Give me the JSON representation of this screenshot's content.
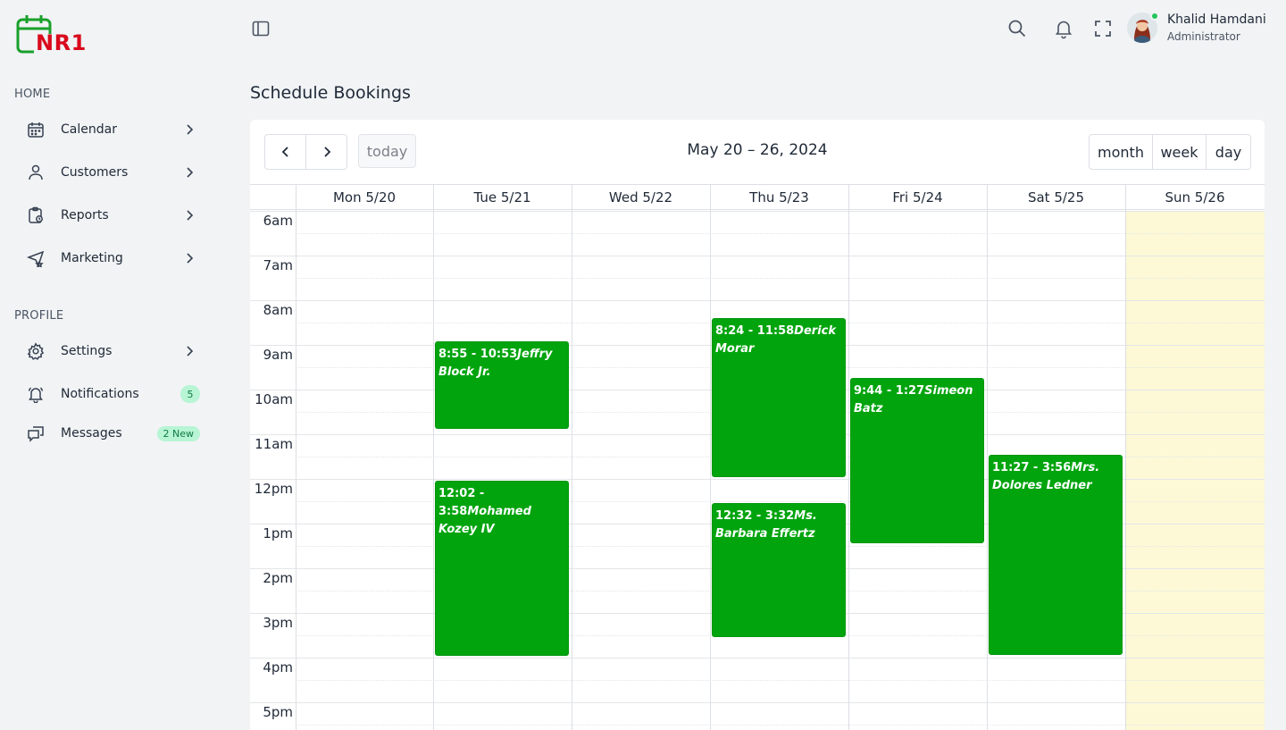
{
  "app": {
    "logo_text": "NR1",
    "user": {
      "name": "Khalid Hamdani",
      "role": "Administrator"
    }
  },
  "colors": {
    "event": "#02a40e",
    "logo": "#d90b1c",
    "today_bg": "#fdf9d6",
    "badge_bg": "#b7f5d4"
  },
  "sidebar": {
    "home_label": "HOME",
    "profile_label": "PROFILE",
    "home_items": [
      {
        "label": "Calendar",
        "icon": "calendar-icon"
      },
      {
        "label": "Customers",
        "icon": "user-icon"
      },
      {
        "label": "Reports",
        "icon": "clipboard-icon"
      },
      {
        "label": "Marketing",
        "icon": "send-icon"
      }
    ],
    "profile_items": [
      {
        "label": "Settings",
        "icon": "gear-icon"
      },
      {
        "label": "Notifications",
        "icon": "bell-icon",
        "badge": "5"
      },
      {
        "label": "Messages",
        "icon": "chat-icon",
        "badge": "2 New"
      }
    ]
  },
  "page": {
    "title": "Schedule Bookings"
  },
  "calendar": {
    "range_title": "May 20 – 26, 2024",
    "today_label": "today",
    "views": [
      "month",
      "week",
      "day"
    ],
    "days": [
      "Mon 5/20",
      "Tue 5/21",
      "Wed 5/22",
      "Thu 5/23",
      "Fri 5/24",
      "Sat 5/25",
      "Sun 5/26"
    ],
    "time_slots": [
      "6am",
      "7am",
      "8am",
      "9am",
      "10am",
      "11am",
      "12pm",
      "1pm",
      "2pm",
      "3pm",
      "4pm",
      "5pm"
    ],
    "events": [
      {
        "day": 1,
        "time": "8:55 - 10:53",
        "name": "Jeffry Block Jr."
      },
      {
        "day": 1,
        "time": "12:02 - 3:58",
        "name": "Mohamed Kozey IV"
      },
      {
        "day": 3,
        "time": "8:24 - 11:58",
        "name": "Derick Morar"
      },
      {
        "day": 3,
        "time": "12:32 - 3:32",
        "name": "Ms. Barbara Effertz"
      },
      {
        "day": 4,
        "time": "9:44 - 1:27",
        "name": "Simeon Batz"
      },
      {
        "day": 5,
        "time": "11:27 - 3:56",
        "name": "Mrs. Dolores Ledner"
      }
    ]
  }
}
